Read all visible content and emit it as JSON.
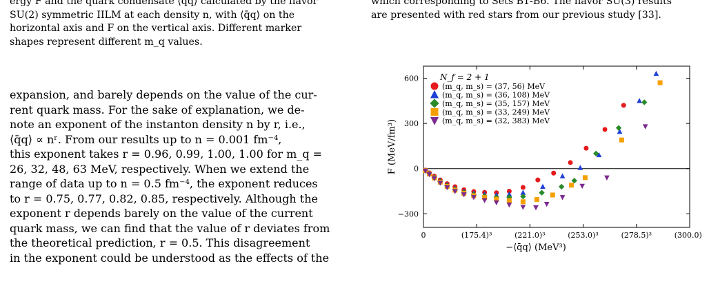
{
  "left_caption": {
    "line1": "ergy F and the quark condensate ⟨q̄q⟩ calculated by the flavor",
    "line2": "SU(2) symmetric IILM at each density n, with ⟨q̄q⟩ on the",
    "line3": "horizontal axis and F on the vertical axis. Different marker",
    "line4": "shapes represent different m_q values."
  },
  "left_body": {
    "lines": [
      "expansion, and barely depends on the value of the cur-",
      "rent quark mass. For the sake of explanation, we de-",
      "note an exponent of the instanton density n by r, i.e.,",
      "⟨q̄q⟩ ∝ nʳ. From our results up to n = 0.001 fm⁻⁴,",
      "this exponent takes r = 0.96, 0.99, 1.00, 1.00 for m_q =",
      "26, 32, 48, 63 MeV, respectively. When we extend the",
      "range of data up to n = 0.5 fm⁻⁴, the exponent reduces",
      "to r = 0.75, 0.77, 0.82, 0.85, respectively. Although the",
      "exponent r depends barely on the value of the current",
      "quark mass, we can find that the value of r deviates from",
      "the theoretical prediction, r = 0.5. This disagreement",
      "in the exponent could be understood as the effects of the"
    ]
  },
  "right_caption": {
    "line1": "which corresponding to Sets B1-B6. The flavor SU(3) results",
    "line2": "are presented with red stars from our previous study [33]."
  },
  "chart_data": {
    "type": "scatter",
    "xlabel": "−⟨q̄q⟩ (MeV³)",
    "ylabel": "F (MeV/fm³)",
    "x_unit_note": "x values in MeV^3 (cube of the printed tick bases)",
    "xlim": [
      0,
      27000000
    ],
    "ylim": [
      -390,
      680
    ],
    "x_tick_labels": [
      "0",
      "(175.4)³",
      "(221.0)³",
      "(253.0)³",
      "(278.5)³",
      "(300.0)³"
    ],
    "x_tick_values": [
      0,
      5396000,
      10794000,
      16194000,
      21601000,
      27000000
    ],
    "y_tick_labels": [
      "−300",
      "0",
      "300",
      "600"
    ],
    "y_tick_values": [
      -300,
      0,
      300,
      600
    ],
    "zero_line": true,
    "legend_title": "N_f = 2 + 1",
    "legend_position": "top-left",
    "series": [
      {
        "name": "(m_q, m_s) = (37, 56) MeV",
        "marker": "circle",
        "color": "#e41a1c",
        "points": [
          [
            200000,
            -10
          ],
          [
            600000,
            -28
          ],
          [
            1100000,
            -50
          ],
          [
            1700000,
            -75
          ],
          [
            2400000,
            -100
          ],
          [
            3200000,
            -120
          ],
          [
            4100000,
            -140
          ],
          [
            5100000,
            -152
          ],
          [
            6200000,
            -158
          ],
          [
            7400000,
            -160
          ],
          [
            8700000,
            -150
          ],
          [
            10100000,
            -125
          ],
          [
            11600000,
            -75
          ],
          [
            13200000,
            -30
          ],
          [
            14900000,
            40
          ],
          [
            16500000,
            135
          ],
          [
            18400000,
            260
          ],
          [
            20300000,
            420
          ]
        ]
      },
      {
        "name": "(m_q, m_s) = (36, 108) MeV",
        "marker": "triangle-up",
        "color": "#1f3fd6",
        "points": [
          [
            200000,
            -12
          ],
          [
            600000,
            -32
          ],
          [
            1100000,
            -55
          ],
          [
            1700000,
            -80
          ],
          [
            2400000,
            -108
          ],
          [
            3200000,
            -130
          ],
          [
            4100000,
            -150
          ],
          [
            5100000,
            -163
          ],
          [
            6200000,
            -170
          ],
          [
            7400000,
            -175
          ],
          [
            8700000,
            -170
          ],
          [
            10100000,
            -160
          ],
          [
            12100000,
            -120
          ],
          [
            14100000,
            -50
          ],
          [
            15900000,
            5
          ],
          [
            17800000,
            90
          ],
          [
            19900000,
            245
          ],
          [
            21900000,
            450
          ],
          [
            23600000,
            630
          ]
        ]
      },
      {
        "name": "(m_q, m_s) = (35, 157) MeV",
        "marker": "diamond",
        "color": "#2a8a2a",
        "points": [
          [
            200000,
            -13
          ],
          [
            600000,
            -34
          ],
          [
            1100000,
            -58
          ],
          [
            1700000,
            -85
          ],
          [
            2400000,
            -112
          ],
          [
            3200000,
            -136
          ],
          [
            4100000,
            -157
          ],
          [
            5100000,
            -172
          ],
          [
            6200000,
            -182
          ],
          [
            7400000,
            -190
          ],
          [
            8700000,
            -190
          ],
          [
            10100000,
            -185
          ],
          [
            12000000,
            -160
          ],
          [
            14000000,
            -120
          ],
          [
            15300000,
            -80
          ],
          [
            17500000,
            100
          ],
          [
            19800000,
            270
          ],
          [
            22400000,
            440
          ]
        ]
      },
      {
        "name": "(m_q, m_s) = (33, 249) MeV",
        "marker": "square",
        "color": "#f5a000",
        "points": [
          [
            200000,
            -14
          ],
          [
            600000,
            -36
          ],
          [
            1100000,
            -62
          ],
          [
            1700000,
            -90
          ],
          [
            2400000,
            -118
          ],
          [
            3200000,
            -143
          ],
          [
            4100000,
            -164
          ],
          [
            5100000,
            -180
          ],
          [
            6200000,
            -192
          ],
          [
            7400000,
            -203
          ],
          [
            8700000,
            -212
          ],
          [
            10100000,
            -220
          ],
          [
            11500000,
            -205
          ],
          [
            13100000,
            -175
          ],
          [
            15000000,
            -110
          ],
          [
            16400000,
            -60
          ],
          [
            20100000,
            190
          ],
          [
            24000000,
            570
          ]
        ]
      },
      {
        "name": "(m_q, m_s) = (32, 383) MeV",
        "marker": "triangle-down",
        "color": "#7b2a8f",
        "points": [
          [
            200000,
            -15
          ],
          [
            600000,
            -38
          ],
          [
            1100000,
            -65
          ],
          [
            1700000,
            -95
          ],
          [
            2400000,
            -125
          ],
          [
            3200000,
            -150
          ],
          [
            4100000,
            -172
          ],
          [
            5100000,
            -190
          ],
          [
            6200000,
            -210
          ],
          [
            7400000,
            -225
          ],
          [
            8700000,
            -240
          ],
          [
            10100000,
            -255
          ],
          [
            11400000,
            -258
          ],
          [
            12500000,
            -235
          ],
          [
            14100000,
            -190
          ],
          [
            16100000,
            -115
          ],
          [
            18600000,
            -60
          ],
          [
            22500000,
            280
          ]
        ]
      }
    ]
  }
}
